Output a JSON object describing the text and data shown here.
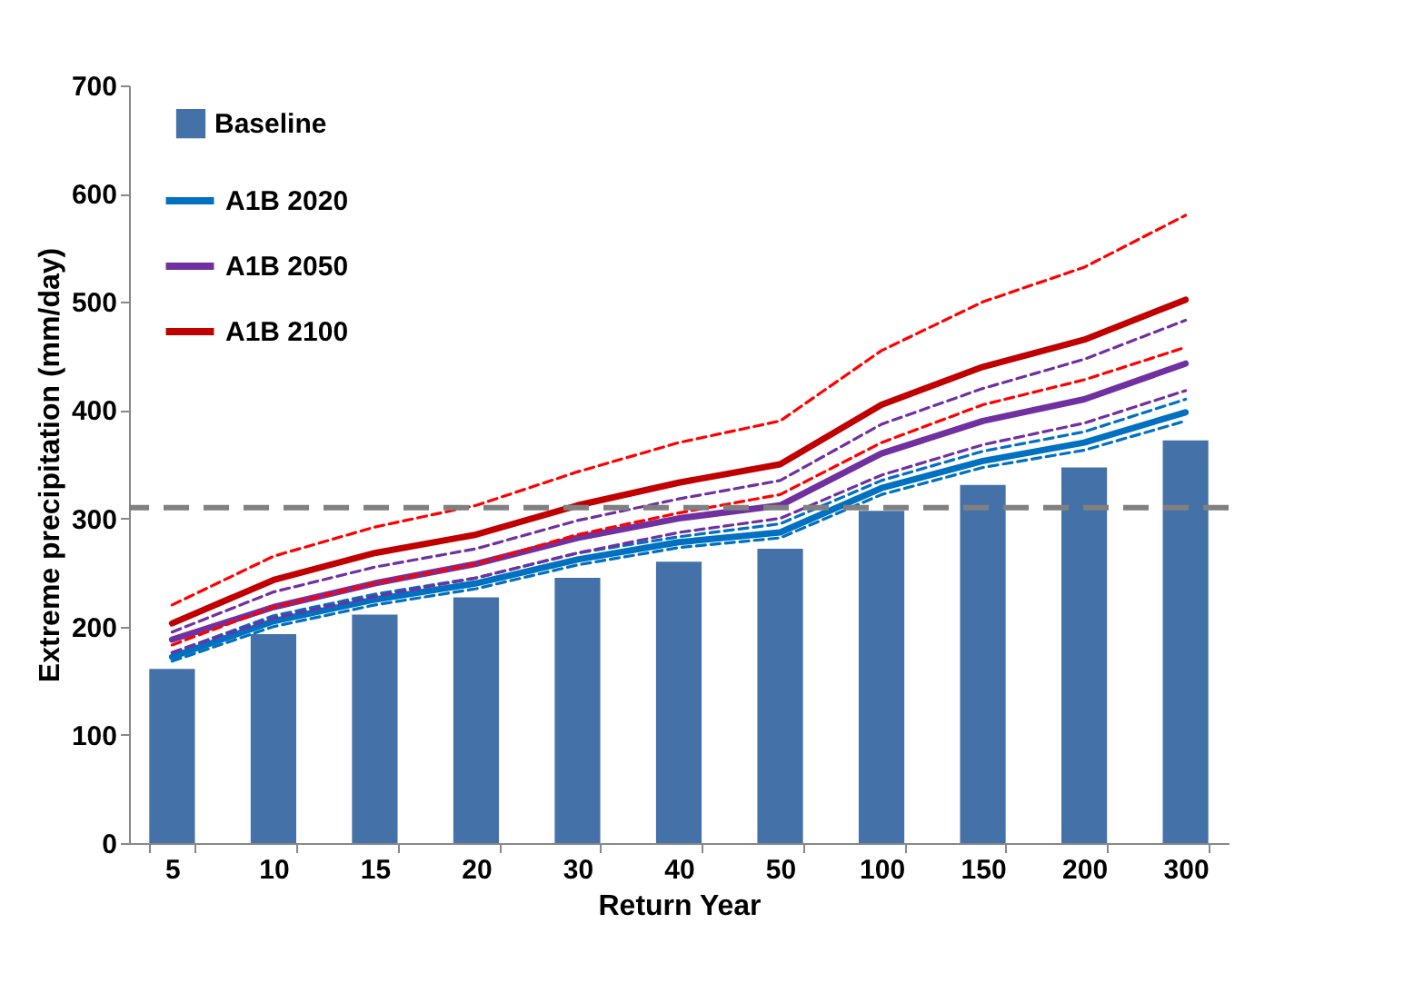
{
  "chart_data": {
    "type": "bar",
    "xlabel": "Return Year",
    "ylabel": "Extreme precipitation (mm/day)",
    "categories": [
      "5",
      "10",
      "15",
      "20",
      "30",
      "40",
      "50",
      "100",
      "150",
      "200",
      "300"
    ],
    "series": [
      {
        "name": "Baseline",
        "color": "#4472a8",
        "values": [
          161,
          193,
          211,
          227,
          245,
          260,
          272,
          307,
          331,
          347,
          372
        ]
      },
      {
        "name": "A1B 2020",
        "type": "line",
        "color": "#0070c0",
        "line_style": "solid",
        "values": [
          172,
          205,
          225,
          240,
          262,
          278,
          287,
          328,
          353,
          370,
          398
        ]
      },
      {
        "name": "A1B 2050",
        "type": "line",
        "color": "#7030a0",
        "line_style": "solid",
        "values": [
          188,
          218,
          240,
          258,
          282,
          300,
          312,
          360,
          390,
          410,
          443
        ]
      },
      {
        "name": "A1B 2100",
        "type": "line",
        "color": "#c00000",
        "line_style": "solid",
        "values": [
          203,
          243,
          268,
          285,
          312,
          333,
          350,
          405,
          440,
          465,
          502
        ]
      },
      {
        "type": "line",
        "color": "#0070c0",
        "line_style": "dashed",
        "values": [
          176,
          210,
          230,
          245,
          268,
          283,
          295,
          335,
          362,
          380,
          410
        ]
      },
      {
        "type": "line",
        "color": "#0070c0",
        "line_style": "dashed",
        "values": [
          168,
          200,
          220,
          235,
          257,
          273,
          282,
          322,
          347,
          363,
          390
        ]
      },
      {
        "type": "line",
        "color": "#7030a0",
        "line_style": "dashed",
        "values": [
          195,
          232,
          255,
          272,
          298,
          318,
          335,
          387,
          420,
          447,
          483
        ]
      },
      {
        "type": "line",
        "color": "#7030a0",
        "line_style": "dashed",
        "values": [
          176,
          208,
          228,
          245,
          268,
          287,
          300,
          340,
          368,
          388,
          418
        ]
      },
      {
        "type": "line",
        "color": "#ff0000",
        "line_style": "dashed",
        "values": [
          220,
          265,
          292,
          312,
          343,
          370,
          390,
          455,
          500,
          532,
          580
        ]
      },
      {
        "type": "line",
        "color": "#ff0000",
        "line_style": "dashed",
        "values": [
          183,
          218,
          240,
          258,
          285,
          305,
          322,
          370,
          405,
          428,
          458
        ]
      }
    ],
    "ylim": [
      0,
      700
    ],
    "yticks": [
      0,
      100,
      200,
      300,
      400,
      500,
      600,
      700
    ],
    "ref_lines": [
      {
        "axis": "y",
        "value": 310,
        "color": "#808080",
        "line_style": "dashed"
      }
    ],
    "legend": "top left",
    "grid": false
  }
}
